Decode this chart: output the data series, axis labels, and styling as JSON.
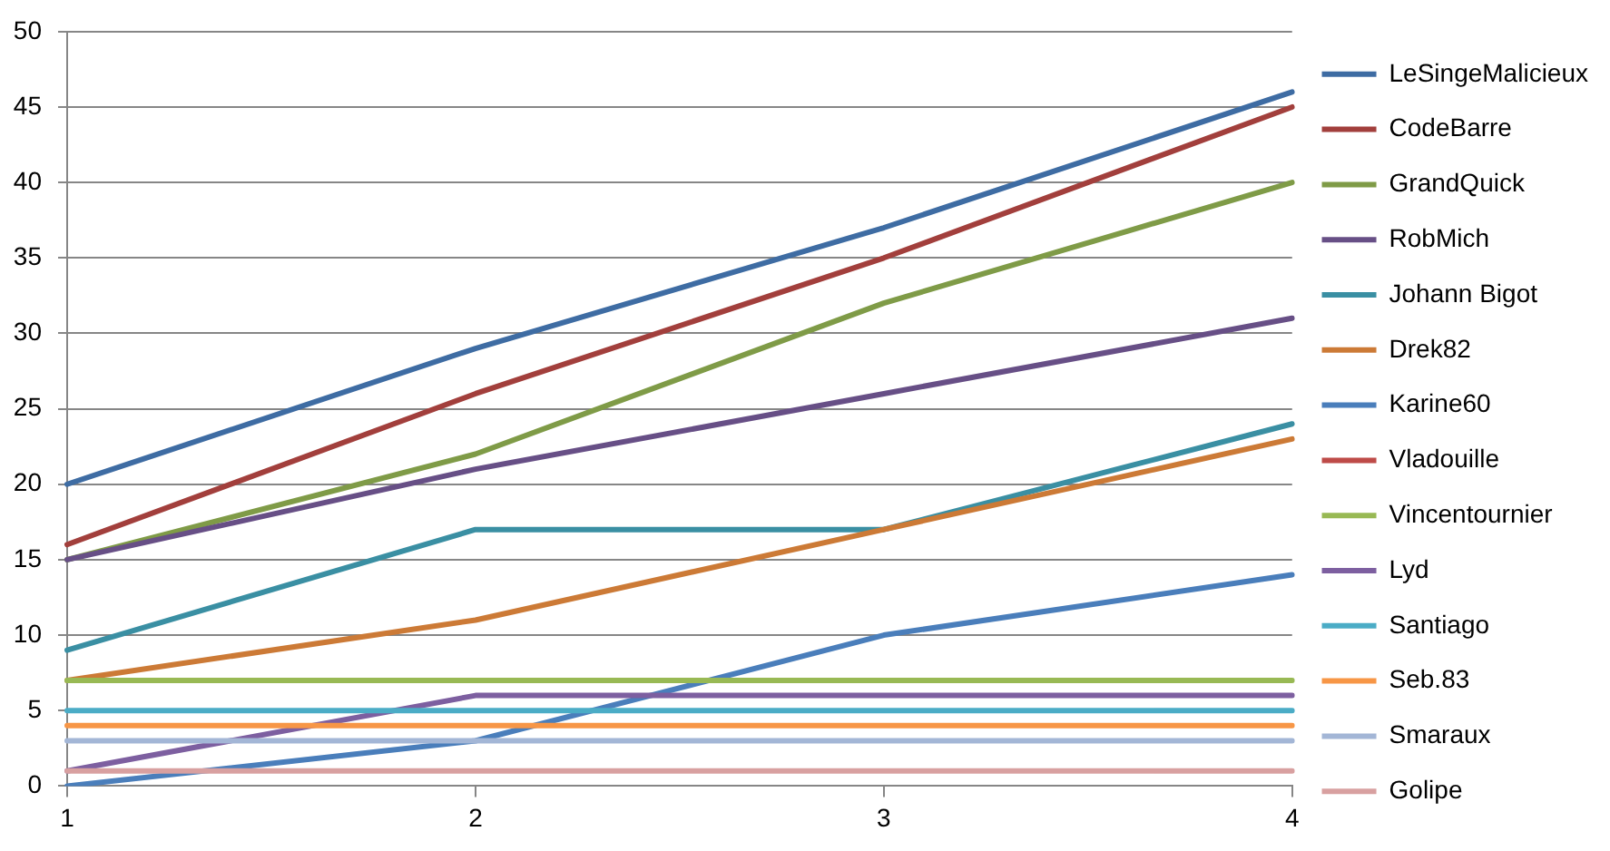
{
  "chart_data": {
    "type": "line",
    "categories": [
      "1",
      "2",
      "3",
      "4"
    ],
    "ylim": [
      0,
      50
    ],
    "yticks": [
      0,
      5,
      10,
      15,
      20,
      25,
      30,
      35,
      40,
      45,
      50
    ],
    "grid": "y",
    "legend": "right",
    "marker": "none",
    "line_style": "solid",
    "series": [
      {
        "name": "LeSingeMalicieux",
        "color": "#3e6ca3",
        "values": [
          20,
          29,
          37,
          46
        ]
      },
      {
        "name": "CodeBarre",
        "color": "#a23f3c",
        "values": [
          16,
          26,
          35,
          45
        ]
      },
      {
        "name": "GrandQuick",
        "color": "#7f9b47",
        "values": [
          15,
          22,
          32,
          40
        ]
      },
      {
        "name": "RobMich",
        "color": "#674f86",
        "values": [
          15,
          21,
          26,
          31
        ]
      },
      {
        "name": "Johann Bigot",
        "color": "#3a8fa3",
        "values": [
          9,
          17,
          17,
          24
        ]
      },
      {
        "name": "Drek82",
        "color": "#cc7a36",
        "values": [
          7,
          11,
          17,
          23
        ]
      },
      {
        "name": "Karine60",
        "color": "#4a7ebb",
        "values": [
          0,
          3,
          10,
          14
        ]
      },
      {
        "name": "Vladouille",
        "color": "#be4b48",
        "values": [
          null,
          null,
          null,
          null
        ]
      },
      {
        "name": "Vincentournier",
        "color": "#98b954",
        "values": [
          7,
          7,
          7,
          7
        ]
      },
      {
        "name": "Lyd",
        "color": "#7d5fa0",
        "values": [
          1,
          6,
          6,
          6
        ]
      },
      {
        "name": "Santiago",
        "color": "#4bacc6",
        "values": [
          5,
          5,
          5,
          5
        ]
      },
      {
        "name": "Seb.83",
        "color": "#f79646",
        "values": [
          4,
          4,
          4,
          4
        ]
      },
      {
        "name": "Smaraux",
        "color": "#a3b6d6",
        "values": [
          3,
          3,
          3,
          3
        ]
      },
      {
        "name": "Golipe",
        "color": "#d8a0a0",
        "values": [
          1,
          1,
          1,
          1
        ]
      }
    ]
  }
}
